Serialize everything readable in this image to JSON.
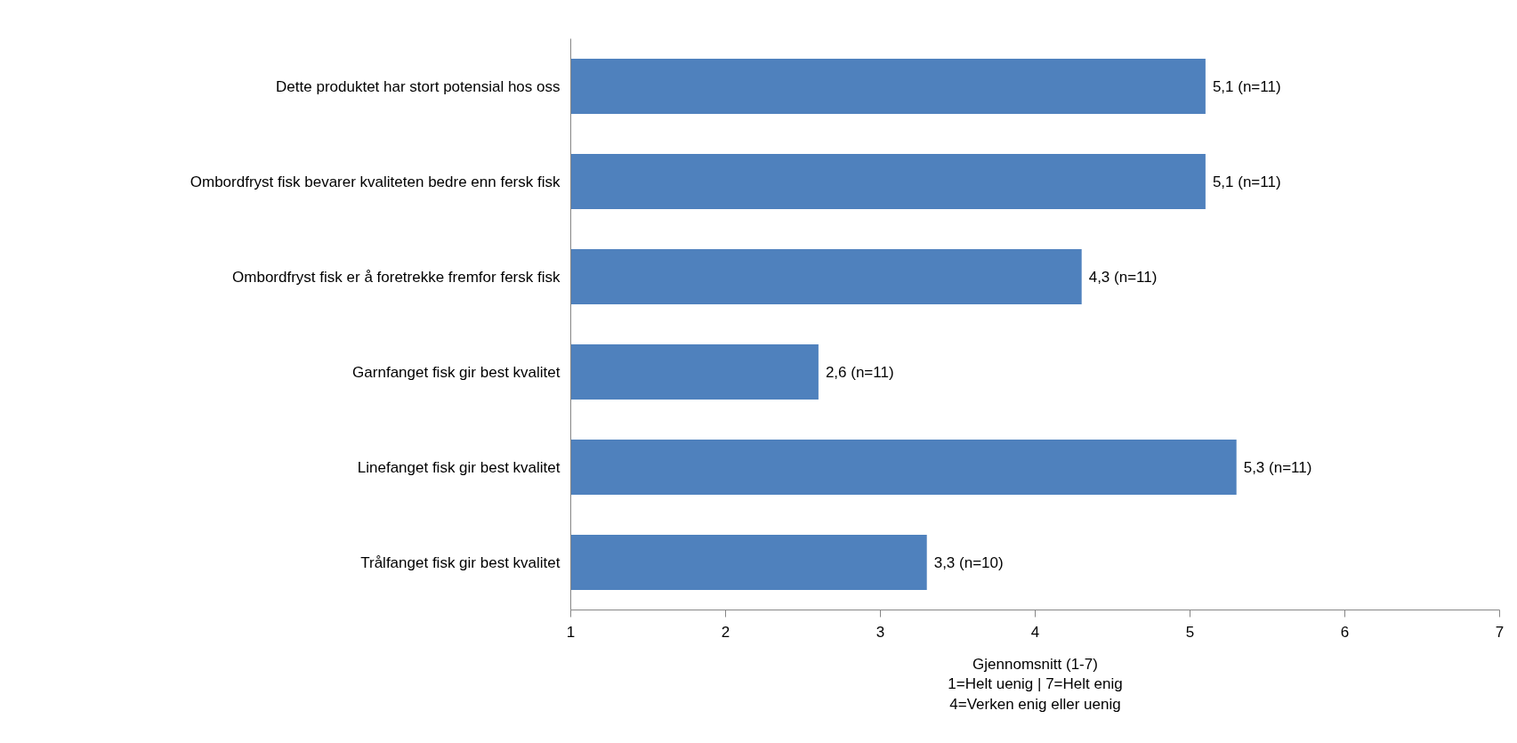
{
  "chart_data": {
    "type": "bar",
    "orientation": "horizontal",
    "categories": [
      "Dette produktet har stort potensial hos oss",
      "Ombordfryst fisk bevarer kvaliteten bedre enn fersk fisk",
      "Ombordfryst fisk er å foretrekke fremfor fersk fisk",
      "Garnfanget fisk gir best kvalitet",
      "Linefanget fisk gir best kvalitet",
      "Trålfanget fisk gir best kvalitet"
    ],
    "values": [
      5.1,
      5.1,
      4.3,
      2.6,
      5.3,
      3.3
    ],
    "value_labels": [
      "5,1 (n=11)",
      "5,1 (n=11)",
      "4,3 (n=11)",
      "2,6 (n=11)",
      "5,3 (n=11)",
      "3,3 (n=10)"
    ],
    "color": "#4f81bd",
    "xlim": [
      1,
      7
    ],
    "xticks": [
      1,
      2,
      3,
      4,
      5,
      6,
      7
    ],
    "xlabel": "Gjennomsnitt (1-7)\n1=Helt uenig | 7=Helt enig\n4=Verken enig eller uenig",
    "grid": false
  }
}
